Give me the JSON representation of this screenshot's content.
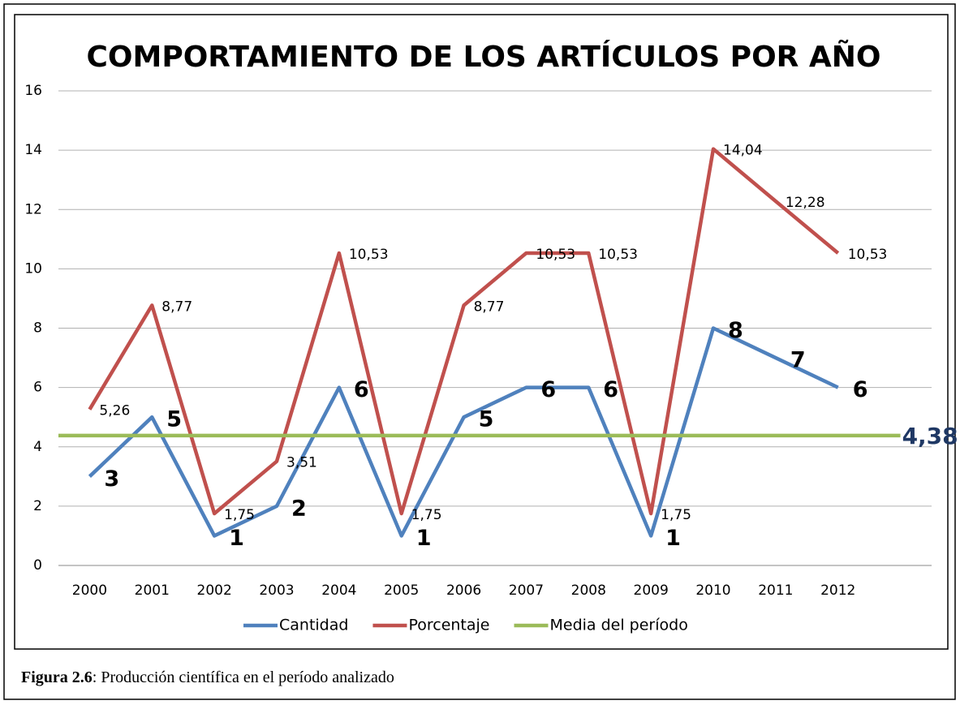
{
  "chart_data": {
    "type": "line",
    "title": "COMPORTAMIENTO DE LOS ARTÍCULOS POR AÑO",
    "categories": [
      "2000",
      "2001",
      "2002",
      "2003",
      "2004",
      "2005",
      "2006",
      "2007",
      "2008",
      "2009",
      "2010",
      "2011",
      "2012",
      null
    ],
    "series": [
      {
        "name": "Cantidad",
        "color": "#4f81bd",
        "values": [
          3,
          5,
          1,
          2,
          6,
          1,
          5,
          6,
          6,
          1,
          8,
          7,
          6,
          null
        ]
      },
      {
        "name": "Porcentaje",
        "color": "#c0504d",
        "values": [
          5.26,
          8.77,
          1.75,
          3.51,
          10.53,
          1.75,
          8.77,
          10.53,
          10.53,
          1.75,
          14.04,
          12.28,
          10.53,
          null
        ],
        "value_labels": [
          "5,26",
          "8,77",
          "1,75",
          "3,51",
          "10,53",
          "1,75",
          "8,77",
          "10,53",
          "10,53",
          "1,75",
          "14,04",
          "12,28",
          "10,53",
          null
        ]
      },
      {
        "name": "Media del período",
        "color": "#9bbb59",
        "value": 4.38,
        "value_label": "4,38"
      }
    ],
    "ylim": [
      0,
      16
    ],
    "yticks": [
      0,
      2,
      4,
      6,
      8,
      10,
      12,
      14,
      16
    ],
    "grid": true,
    "legend": "bottom"
  },
  "caption": {
    "label": "Figura 2.6",
    "text": ": Producción científica  en el período analizado"
  }
}
